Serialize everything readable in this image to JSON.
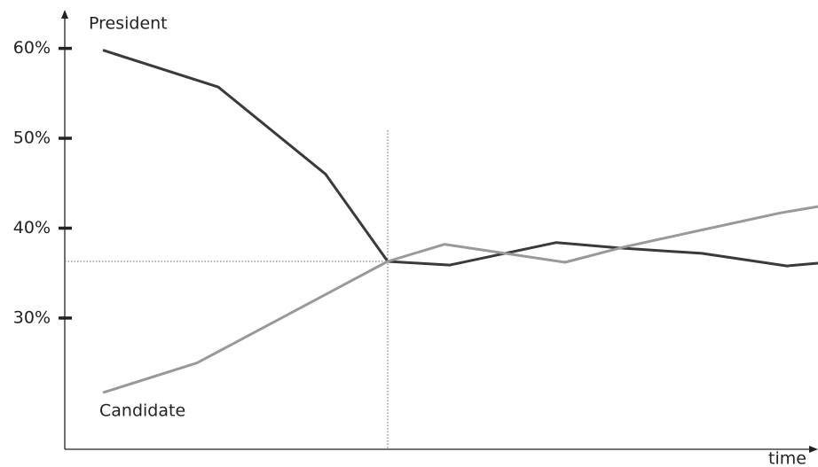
{
  "chart_data": {
    "type": "line",
    "x_label": "time",
    "xlim": [
      0,
      849
    ],
    "ylim": [
      15.4,
      64.2
    ],
    "yticks": [
      {
        "value": 30,
        "label": "30%"
      },
      {
        "value": 40,
        "label": "40%"
      },
      {
        "value": 50,
        "label": "50%"
      },
      {
        "value": 60,
        "label": "60%"
      }
    ],
    "crossing": {
      "x": 364,
      "y": 36.3
    },
    "series": [
      {
        "name": "President",
        "color": "#3a3a3a",
        "x": [
          43,
          173,
          294,
          364,
          434,
          554,
          624,
          718,
          814,
          849
        ],
        "values": [
          59.8,
          55.7,
          46.0,
          36.3,
          35.9,
          38.4,
          37.8,
          37.2,
          35.8,
          36.1
        ]
      },
      {
        "name": "Candidate",
        "color": "#999999",
        "x": [
          43,
          149,
          364,
          428,
          564,
          630,
          718,
          807,
          849
        ],
        "values": [
          21.7,
          25.0,
          36.3,
          38.2,
          36.2,
          37.9,
          39.8,
          41.7,
          42.4
        ]
      }
    ]
  }
}
